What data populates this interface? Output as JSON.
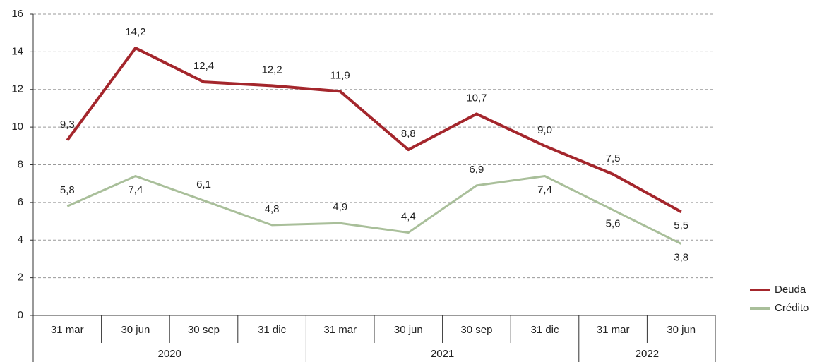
{
  "chart_data": {
    "type": "line",
    "groups": [
      {
        "label": "2020",
        "categories": [
          "31 mar",
          "30 jun",
          "30 sep",
          "31 dic"
        ]
      },
      {
        "label": "2021",
        "categories": [
          "31 mar",
          "30 jun",
          "30 sep",
          "31 dic"
        ]
      },
      {
        "label": "2022",
        "categories": [
          "31 mar",
          "30 jun"
        ]
      }
    ],
    "series": [
      {
        "name": "Deuda",
        "color": "#a4262c",
        "values": [
          9.3,
          14.2,
          12.4,
          12.2,
          11.9,
          8.8,
          10.7,
          9.0,
          7.5,
          5.5
        ],
        "value_labels": [
          "9,3",
          "14,2",
          "12,4",
          "12,2",
          "11,9",
          "8,8",
          "10,7",
          "9,0",
          "7,5",
          "5,5"
        ]
      },
      {
        "name": "Crédito",
        "color": "#a9bf9a",
        "values": [
          5.8,
          7.4,
          6.1,
          4.8,
          4.9,
          4.4,
          6.9,
          7.4,
          5.6,
          3.8
        ],
        "value_labels": [
          "5,8",
          "7,4",
          "6,1",
          "4,8",
          "4,9",
          "4,4",
          "6,9",
          "7,4",
          "5,6",
          "3,8"
        ]
      }
    ],
    "ylim": [
      0,
      16
    ],
    "yticks": [
      0,
      2,
      4,
      6,
      8,
      10,
      12,
      14,
      16
    ],
    "grid": true,
    "legend": "right"
  }
}
